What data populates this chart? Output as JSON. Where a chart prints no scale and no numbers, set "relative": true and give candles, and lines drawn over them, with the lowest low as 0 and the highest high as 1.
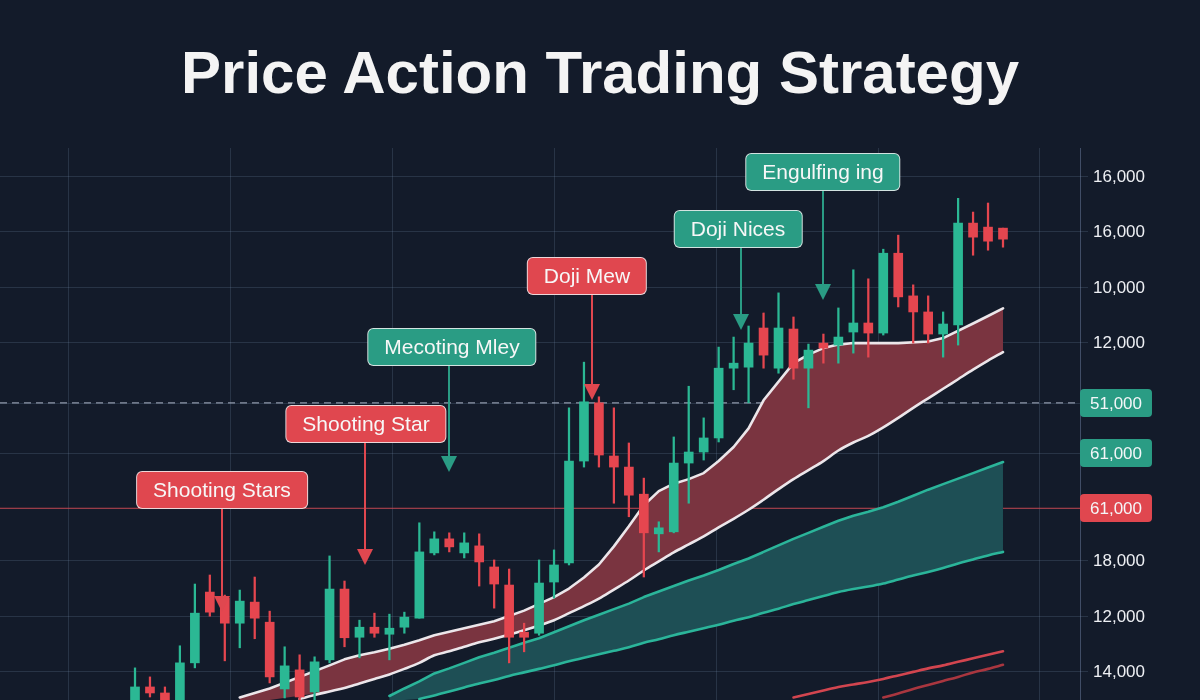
{
  "chart_data": {
    "type": "candlestick",
    "title": "Price Action Trading Strategy",
    "relative": true,
    "categories": [
      null,
      null,
      null,
      null,
      null,
      null,
      null,
      null,
      null,
      null,
      null,
      null,
      null,
      null,
      null,
      null,
      null,
      null,
      null,
      null,
      null,
      null,
      null,
      null,
      null,
      null,
      null,
      null,
      null,
      null,
      null,
      null,
      null,
      null,
      null,
      null,
      null,
      null,
      null,
      null,
      null,
      null,
      null,
      null,
      null,
      null,
      null,
      null,
      null,
      null,
      null,
      null,
      null,
      null,
      null,
      null,
      null,
      null,
      null
    ],
    "ohlc": [
      [
        0,
        0.064,
        0,
        0.026
      ],
      [
        0.026,
        0.046,
        0.006,
        0.014
      ],
      [
        0.014,
        0.026,
        0,
        0
      ],
      [
        0,
        0.108,
        0,
        0.074
      ],
      [
        0.074,
        0.231,
        0.064,
        0.173
      ],
      [
        0.215,
        0.249,
        0.167,
        0.175
      ],
      [
        0.203,
        0.209,
        0.078,
        0.153
      ],
      [
        0.153,
        0.219,
        0.104,
        0.197
      ],
      [
        0.195,
        0.245,
        0.122,
        0.163
      ],
      [
        0.155,
        0.177,
        0.034,
        0.046
      ],
      [
        0.022,
        0.106,
        0.004,
        0.068
      ],
      [
        0.06,
        0.09,
        0,
        0.006
      ],
      [
        0.016,
        0.086,
        0,
        0.076
      ],
      [
        0.08,
        0.287,
        0.074,
        0.221
      ],
      [
        0.221,
        0.237,
        0.106,
        0.124
      ],
      [
        0.125,
        0.159,
        0.084,
        0.145
      ],
      [
        0.145,
        0.173,
        0.125,
        0.133
      ],
      [
        0.131,
        0.171,
        0.08,
        0.143
      ],
      [
        0.145,
        0.175,
        0.133,
        0.165
      ],
      [
        0.163,
        0.353,
        0.163,
        0.295
      ],
      [
        0.293,
        0.335,
        0.289,
        0.321
      ],
      [
        0.321,
        0.333,
        0.295,
        0.305
      ],
      [
        0.293,
        0.333,
        0.283,
        0.313
      ],
      [
        0.307,
        0.331,
        0.227,
        0.275
      ],
      [
        0.265,
        0.279,
        0.183,
        0.231
      ],
      [
        0.229,
        0.261,
        0.074,
        0.125
      ],
      [
        0.135,
        0.153,
        0.096,
        0.125
      ],
      [
        0.133,
        0.279,
        0.129,
        0.233
      ],
      [
        0.235,
        0.299,
        0.203,
        0.269
      ],
      [
        0.273,
        0.582,
        0.269,
        0.476
      ],
      [
        0.476,
        0.673,
        0.464,
        0.594
      ],
      [
        0.592,
        0.604,
        0.464,
        0.488
      ],
      [
        0.486,
        0.582,
        0.392,
        0.464
      ],
      [
        0.464,
        0.512,
        0.365,
        0.408
      ],
      [
        0.41,
        0.442,
        0.245,
        0.333
      ],
      [
        0.331,
        0.355,
        0.295,
        0.343
      ],
      [
        0.335,
        0.524,
        0.333,
        0.472
      ],
      [
        0.472,
        0.625,
        0.392,
        0.494
      ],
      [
        0.494,
        0.562,
        0.478,
        0.522
      ],
      [
        0.522,
        0.703,
        0.514,
        0.661
      ],
      [
        0.661,
        0.723,
        0.618,
        0.671
      ],
      [
        0.663,
        0.745,
        0.592,
        0.711
      ],
      [
        0.741,
        0.771,
        0.661,
        0.687
      ],
      [
        0.661,
        0.811,
        0.651,
        0.741
      ],
      [
        0.739,
        0.763,
        0.639,
        0.661
      ],
      [
        0.661,
        0.709,
        0.582,
        0.697
      ],
      [
        0.711,
        0.729,
        0.671,
        0.701
      ],
      [
        0.707,
        0.781,
        0.671,
        0.723
      ],
      [
        0.733,
        0.857,
        0.691,
        0.751
      ],
      [
        0.751,
        0.839,
        0.683,
        0.731
      ],
      [
        0.731,
        0.898,
        0.727,
        0.89
      ],
      [
        0.89,
        0.926,
        0.783,
        0.803
      ],
      [
        0.805,
        0.827,
        0.711,
        0.773
      ],
      [
        0.773,
        0.805,
        0.711,
        0.729
      ],
      [
        0.729,
        0.773,
        0.683,
        0.749
      ],
      [
        0.747,
        1.0,
        0.707,
        0.95
      ],
      [
        0.95,
        0.972,
        0.886,
        0.922
      ],
      [
        0.942,
        0.99,
        0.896,
        0.914
      ],
      [
        0.94,
        0.94,
        0.902,
        0.918
      ]
    ],
    "colors": [
      "#2bb894",
      "#e5464f",
      "#e5464f",
      "#2bb894",
      "#2bb894",
      "#e5464f",
      "#e5464f",
      "#2bb894",
      "#e5464f",
      "#e5464f",
      "#2bb894",
      "#e5464f",
      "#2bb894",
      "#2bb894",
      "#e5464f",
      "#2bb894",
      "#e5464f",
      "#2bb894",
      "#2bb894",
      "#2bb894",
      "#2bb894",
      "#e5464f",
      "#2bb894",
      "#e5464f",
      "#e5464f",
      "#e5464f",
      "#e5464f",
      "#2bb894",
      "#2bb894",
      "#2bb894",
      "#2bb894",
      "#e5464f",
      "#e5464f",
      "#e5464f",
      "#e5464f",
      "#2bb894",
      "#2bb894",
      "#2bb894",
      "#2bb894",
      "#2bb894",
      "#2bb894",
      "#2bb894",
      "#e5464f",
      "#2bb894",
      "#e5464f",
      "#2bb894",
      "#e5464f",
      "#2bb894",
      "#2bb894",
      "#e5464f",
      "#2bb894",
      "#e5464f",
      "#e5464f",
      "#e5464f",
      "#2bb894",
      "#2bb894",
      "#e5464f",
      "#e5464f",
      "#e5464f"
    ],
    "series": [
      {
        "type": "area",
        "color": "#7a3440",
        "values": [
          null,
          null,
          null,
          null,
          null,
          null,
          null,
          0.005,
          0.014,
          0.023,
          null,
          null,
          null,
          0.069,
          0.081,
          0.089,
          0.095,
          0.102,
          0.11,
          0.119,
          0.129,
          0.136,
          0.143,
          0.15,
          0.157,
          null,
          0.178,
          null,
          0.205,
          0.222,
          0.244,
          0.27,
          0.306,
          0.346,
          0.388,
          0.416,
          0.431,
          0.44,
          0.452,
          0.476,
          0.504,
          0.541,
          0.597,
          null,
          0.671,
          0.688,
          0.701,
          0.708,
          0.711,
          0.711,
          null,
          0.711,
          null,
          0.714,
          0.721,
          null,
          0.75,
          0.765,
          0.78
        ]
      },
      {
        "type": "line",
        "color": "#ece6ea",
        "values": [
          null,
          null,
          null,
          null,
          null,
          null,
          null,
          null,
          null,
          null,
          null,
          0.002,
          0.01,
          0.017,
          0.024,
          0.033,
          0.042,
          0.051,
          0.062,
          0.074,
          0.089,
          0.097,
          0.106,
          0.115,
          0.122,
          null,
          0.139,
          null,
          0.159,
          0.173,
          0.187,
          0.202,
          0.22,
          0.238,
          0.258,
          0.276,
          0.294,
          0.31,
          0.326,
          0.344,
          0.361,
          0.379,
          0.399,
          0.42,
          0.44,
          0.458,
          0.476,
          0.497,
          0.513,
          0.526,
          0.543,
          0.562,
          0.582,
          0.601,
          0.62,
          0.639,
          0.658,
          0.676,
          0.693
        ]
      },
      {
        "type": "area",
        "color": "#1e4f55",
        "values": [
          null,
          null,
          null,
          null,
          null,
          null,
          null,
          null,
          null,
          null,
          null,
          null,
          null,
          null,
          null,
          null,
          null,
          0.008,
          0.023,
          0.037,
          0.053,
          0.063,
          0.074,
          0.085,
          0.094,
          0.104,
          0.114,
          0.123,
          0.135,
          0.147,
          0.159,
          0.17,
          0.181,
          0.192,
          0.205,
          0.216,
          0.227,
          0.238,
          0.248,
          0.259,
          0.271,
          0.282,
          0.295,
          0.308,
          0.321,
          0.333,
          0.345,
          0.357,
          0.367,
          0.375,
          0.384,
          0.395,
          0.407,
          0.419,
          0.43,
          0.441,
          0.452,
          0.463,
          0.474
        ]
      },
      {
        "type": "line",
        "color": "#2bb59a",
        "values": [
          null,
          null,
          null,
          null,
          null,
          null,
          null,
          null,
          null,
          null,
          null,
          null,
          null,
          null,
          null,
          null,
          null,
          null,
          null,
          0.002,
          0.009,
          0.017,
          0.025,
          0.033,
          0.04,
          0.048,
          0.055,
          0.062,
          0.069,
          0.077,
          0.084,
          0.091,
          0.098,
          0.105,
          0.114,
          0.121,
          0.129,
          0.136,
          0.143,
          0.15,
          0.158,
          0.165,
          0.174,
          0.182,
          0.191,
          0.199,
          0.207,
          0.215,
          0.221,
          0.226,
          0.232,
          0.24,
          0.248,
          0.255,
          0.263,
          0.272,
          0.28,
          0.288,
          0.295
        ]
      },
      {
        "type": "line",
        "color": "#d2454f",
        "values": [
          null,
          null,
          null,
          null,
          null,
          null,
          null,
          null,
          null,
          null,
          null,
          null,
          null,
          null,
          null,
          null,
          null,
          null,
          null,
          null,
          null,
          null,
          null,
          null,
          null,
          null,
          null,
          null,
          null,
          null,
          null,
          null,
          null,
          null,
          null,
          null,
          null,
          null,
          null,
          null,
          null,
          null,
          null,
          null,
          0.005,
          0.012,
          0.019,
          0.026,
          0.031,
          0.036,
          0.042,
          0.049,
          0.056,
          0.063,
          0.069,
          0.076,
          0.083,
          0.09,
          0.097
        ]
      },
      {
        "type": "line",
        "color": "#a9363f",
        "values": [
          null,
          null,
          null,
          null,
          null,
          null,
          null,
          null,
          null,
          null,
          null,
          null,
          null,
          null,
          null,
          null,
          null,
          null,
          null,
          null,
          null,
          null,
          null,
          null,
          null,
          null,
          null,
          null,
          null,
          null,
          null,
          null,
          null,
          null,
          null,
          null,
          null,
          null,
          null,
          null,
          null,
          null,
          null,
          null,
          null,
          null,
          null,
          null,
          null,
          null,
          0.005,
          0.013,
          0.022,
          0.03,
          0.038,
          0.046,
          0.055,
          0.062,
          0.07
        ]
      }
    ],
    "ref_lines": [
      {
        "axis": "y",
        "value": 0.592,
        "color": "#a3adbd",
        "line_style": "dashed"
      },
      {
        "axis": "y",
        "value": 0.382,
        "color": "#d9434c"
      }
    ],
    "annotations": [
      "Shooting Stars",
      "Shooting Star",
      "Mecoting Mley",
      "Doji Mew",
      "Doji Nices",
      "Engulfing ing",
      "16,000",
      "16,000",
      "10,000",
      "12,000",
      "51,000",
      "61,000",
      "61,000",
      "18,000",
      "12,000",
      "14,000"
    ],
    "grid": true
  }
}
